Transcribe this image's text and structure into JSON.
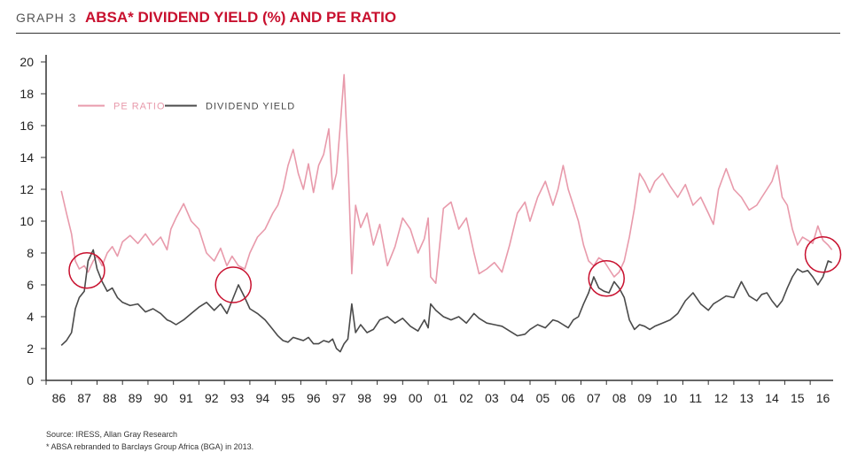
{
  "header": {
    "graph_label": "GRAPH 3",
    "title": "ABSA* DIVIDEND YIELD (%) AND PE RATIO"
  },
  "colors": {
    "title": "#c8102e",
    "pe_ratio": "#e89aab",
    "dividend_yield": "#4a4a4a",
    "circle": "#c8102e",
    "axis": "#333333"
  },
  "chart_data": {
    "type": "line",
    "title": "ABSA* DIVIDEND YIELD (%) AND PE RATIO",
    "xlabel": "",
    "ylabel": "",
    "ylim": [
      0,
      20
    ],
    "y_ticks": [
      0,
      2,
      4,
      6,
      8,
      10,
      12,
      14,
      16,
      18,
      20
    ],
    "x_range": [
      1986,
      2016.9
    ],
    "x_ticks": [
      "86",
      "87",
      "88",
      "89",
      "90",
      "91",
      "92",
      "93",
      "94",
      "95",
      "96",
      "97",
      "98",
      "99",
      "00",
      "01",
      "02",
      "03",
      "04",
      "05",
      "06",
      "07",
      "08",
      "09",
      "10",
      "11",
      "12",
      "13",
      "14",
      "15",
      "16"
    ],
    "grid": false,
    "legend": {
      "placement": "top-left",
      "entries": [
        "PE RATIO",
        "DIVIDEND YIELD"
      ]
    },
    "series": [
      {
        "name": "PE RATIO",
        "x": [
          1986.6,
          1986.8,
          1987.0,
          1987.15,
          1987.3,
          1987.5,
          1987.65,
          1987.85,
          1988.0,
          1988.2,
          1988.4,
          1988.6,
          1988.8,
          1989.0,
          1989.3,
          1989.6,
          1989.9,
          1990.2,
          1990.5,
          1990.75,
          1990.9,
          1991.1,
          1991.4,
          1991.7,
          1992.0,
          1992.3,
          1992.6,
          1992.85,
          1993.1,
          1993.3,
          1993.55,
          1993.8,
          1994.0,
          1994.3,
          1994.6,
          1994.9,
          1995.1,
          1995.3,
          1995.5,
          1995.7,
          1995.9,
          1996.1,
          1996.3,
          1996.5,
          1996.7,
          1996.9,
          1997.1,
          1997.25,
          1997.4,
          1997.55,
          1997.7,
          1997.85,
          1998.0,
          1998.15,
          1998.35,
          1998.6,
          1998.85,
          1999.1,
          1999.4,
          1999.7,
          2000.0,
          2000.3,
          2000.6,
          2000.85,
          2001.0,
          2001.1,
          2001.3,
          2001.6,
          2001.9,
          2002.2,
          2002.5,
          2002.8,
          2003.0,
          2003.3,
          2003.6,
          2003.9,
          2004.2,
          2004.5,
          2004.8,
          2005.0,
          2005.3,
          2005.6,
          2005.9,
          2006.1,
          2006.3,
          2006.5,
          2006.7,
          2006.9,
          2007.1,
          2007.3,
          2007.5,
          2007.7,
          2007.9,
          2008.1,
          2008.3,
          2008.5,
          2008.7,
          2008.9,
          2009.1,
          2009.3,
          2009.5,
          2009.7,
          2009.9,
          2010.2,
          2010.5,
          2010.8,
          2011.1,
          2011.4,
          2011.7,
          2012.0,
          2012.2,
          2012.4,
          2012.7,
          2013.0,
          2013.3,
          2013.6,
          2013.9,
          2014.1,
          2014.3,
          2014.5,
          2014.7,
          2014.9,
          2015.1,
          2015.3,
          2015.5,
          2015.7,
          2015.9,
          2016.1,
          2016.3,
          2016.5,
          2016.7,
          2016.85
        ],
        "values": [
          11.9,
          10.5,
          9.2,
          7.5,
          7.0,
          7.2,
          6.8,
          7.5,
          7.8,
          7.2,
          8.0,
          8.4,
          7.8,
          8.7,
          9.1,
          8.6,
          9.2,
          8.5,
          9.0,
          8.2,
          9.5,
          10.2,
          11.1,
          10.0,
          9.5,
          8.0,
          7.5,
          8.3,
          7.2,
          7.8,
          7.2,
          7.0,
          8.0,
          9.0,
          9.5,
          10.5,
          11.0,
          12.0,
          13.5,
          14.5,
          13.0,
          12.0,
          13.6,
          11.8,
          13.5,
          14.2,
          15.8,
          12.0,
          13.0,
          16.0,
          19.2,
          14.0,
          6.7,
          11.0,
          9.6,
          10.5,
          8.5,
          9.8,
          7.2,
          8.4,
          10.2,
          9.5,
          8.0,
          8.9,
          10.2,
          6.5,
          6.1,
          10.8,
          11.2,
          9.5,
          10.2,
          8.0,
          6.7,
          7.0,
          7.4,
          6.8,
          8.5,
          10.5,
          11.2,
          10.0,
          11.5,
          12.5,
          11.0,
          12.0,
          13.5,
          12.0,
          11.0,
          10.0,
          8.5,
          7.5,
          7.2,
          7.7,
          7.5,
          7.0,
          6.5,
          6.8,
          7.5,
          9.0,
          10.8,
          13.0,
          12.5,
          11.8,
          12.5,
          13.0,
          12.2,
          11.5,
          12.3,
          11.0,
          11.5,
          10.5,
          9.8,
          12.0,
          13.3,
          12.0,
          11.5,
          10.7,
          11.0,
          11.5,
          12.0,
          12.5,
          13.5,
          11.5,
          11.0,
          9.5,
          8.5,
          9.0,
          8.8,
          8.6,
          9.7,
          8.8,
          8.5,
          8.2
        ]
      },
      {
        "name": "DIVIDEND YIELD",
        "x": [
          1986.6,
          1986.8,
          1987.0,
          1987.15,
          1987.3,
          1987.5,
          1987.65,
          1987.85,
          1988.0,
          1988.2,
          1988.4,
          1988.6,
          1988.8,
          1989.0,
          1989.3,
          1989.6,
          1989.9,
          1990.2,
          1990.5,
          1990.75,
          1990.9,
          1991.1,
          1991.4,
          1991.7,
          1992.0,
          1992.3,
          1992.6,
          1992.85,
          1993.1,
          1993.3,
          1993.55,
          1993.8,
          1994.0,
          1994.3,
          1994.6,
          1994.9,
          1995.1,
          1995.3,
          1995.5,
          1995.7,
          1995.9,
          1996.1,
          1996.3,
          1996.5,
          1996.7,
          1996.9,
          1997.1,
          1997.25,
          1997.4,
          1997.55,
          1997.7,
          1997.85,
          1998.0,
          1998.15,
          1998.35,
          1998.6,
          1998.85,
          1999.1,
          1999.4,
          1999.7,
          2000.0,
          2000.3,
          2000.6,
          2000.85,
          2001.0,
          2001.1,
          2001.3,
          2001.6,
          2001.9,
          2002.2,
          2002.5,
          2002.8,
          2003.0,
          2003.3,
          2003.6,
          2003.9,
          2004.2,
          2004.5,
          2004.8,
          2005.0,
          2005.3,
          2005.6,
          2005.9,
          2006.1,
          2006.3,
          2006.5,
          2006.7,
          2006.9,
          2007.1,
          2007.3,
          2007.5,
          2007.7,
          2007.9,
          2008.1,
          2008.3,
          2008.5,
          2008.7,
          2008.9,
          2009.1,
          2009.3,
          2009.5,
          2009.7,
          2009.9,
          2010.2,
          2010.5,
          2010.8,
          2011.1,
          2011.4,
          2011.7,
          2012.0,
          2012.2,
          2012.4,
          2012.7,
          2013.0,
          2013.3,
          2013.6,
          2013.9,
          2014.1,
          2014.3,
          2014.5,
          2014.7,
          2014.9,
          2015.1,
          2015.3,
          2015.5,
          2015.7,
          2015.9,
          2016.1,
          2016.3,
          2016.5,
          2016.7,
          2016.85
        ],
        "values": [
          2.2,
          2.5,
          3.0,
          4.5,
          5.2,
          5.6,
          7.5,
          8.2,
          7.0,
          6.2,
          5.6,
          5.8,
          5.2,
          4.9,
          4.7,
          4.8,
          4.3,
          4.5,
          4.2,
          3.8,
          3.7,
          3.5,
          3.8,
          4.2,
          4.6,
          4.9,
          4.4,
          4.8,
          4.2,
          5.0,
          6.0,
          5.2,
          4.5,
          4.2,
          3.8,
          3.2,
          2.8,
          2.5,
          2.4,
          2.7,
          2.6,
          2.5,
          2.7,
          2.3,
          2.3,
          2.5,
          2.4,
          2.6,
          2.0,
          1.8,
          2.3,
          2.6,
          4.8,
          3.0,
          3.5,
          3.0,
          3.2,
          3.8,
          4.0,
          3.6,
          3.9,
          3.4,
          3.1,
          3.8,
          3.3,
          4.8,
          4.4,
          4.0,
          3.8,
          4.0,
          3.6,
          4.2,
          3.9,
          3.6,
          3.5,
          3.4,
          3.1,
          2.8,
          2.9,
          3.2,
          3.5,
          3.3,
          3.8,
          3.7,
          3.5,
          3.3,
          3.8,
          4.0,
          4.8,
          5.5,
          6.5,
          5.8,
          5.6,
          5.5,
          6.2,
          5.8,
          5.2,
          3.8,
          3.2,
          3.5,
          3.4,
          3.2,
          3.4,
          3.6,
          3.8,
          4.2,
          5.0,
          5.5,
          4.8,
          4.4,
          4.8,
          5.0,
          5.3,
          5.2,
          6.2,
          5.3,
          5.0,
          5.4,
          5.5,
          5.0,
          4.6,
          5.0,
          5.8,
          6.5,
          7.0,
          6.8,
          6.9,
          6.5,
          6.0,
          6.5,
          7.5,
          7.4
        ]
      }
    ],
    "highlight_circles": [
      {
        "x": 1987.6,
        "y": 6.9
      },
      {
        "x": 1993.35,
        "y": 6.0
      },
      {
        "x": 2008.0,
        "y": 6.4
      },
      {
        "x": 2016.5,
        "y": 7.9
      }
    ]
  },
  "footnotes": {
    "source": "Source: IRESS, Allan Gray Research",
    "note": "* ABSA rebranded to Barclays Group Africa (BGA) in 2013."
  }
}
